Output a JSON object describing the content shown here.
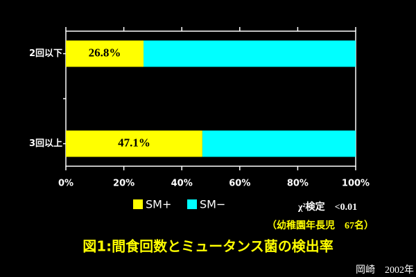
{
  "chart_data": {
    "type": "stacked_bar_horizontal",
    "categories": [
      "2回以下",
      null,
      "3回以上"
    ],
    "series": [
      {
        "name": "SM+",
        "color": "#ffff00",
        "values": [
          26.8,
          null,
          47.1
        ],
        "value_labels": [
          "26.8%",
          null,
          "47.1%"
        ]
      },
      {
        "name": "SM−",
        "color": "#00ffff",
        "values": [
          73.2,
          null,
          52.9
        ]
      }
    ],
    "xlim": [
      0,
      100
    ],
    "xticks": [
      {
        "value": 0,
        "label": "0%"
      },
      {
        "value": 20,
        "label": "20%"
      },
      {
        "value": 40,
        "label": "40%"
      },
      {
        "value": 60,
        "label": "60%"
      },
      {
        "value": 80,
        "label": "80%"
      },
      {
        "value": 100,
        "label": "100%"
      }
    ],
    "annotations": [
      "χ²検定　<0.01",
      "（幼稚園年長児　67名）"
    ],
    "title": "図1:間食回数とミュータンス菌の検出率",
    "credit": "岡崎　2002年"
  }
}
